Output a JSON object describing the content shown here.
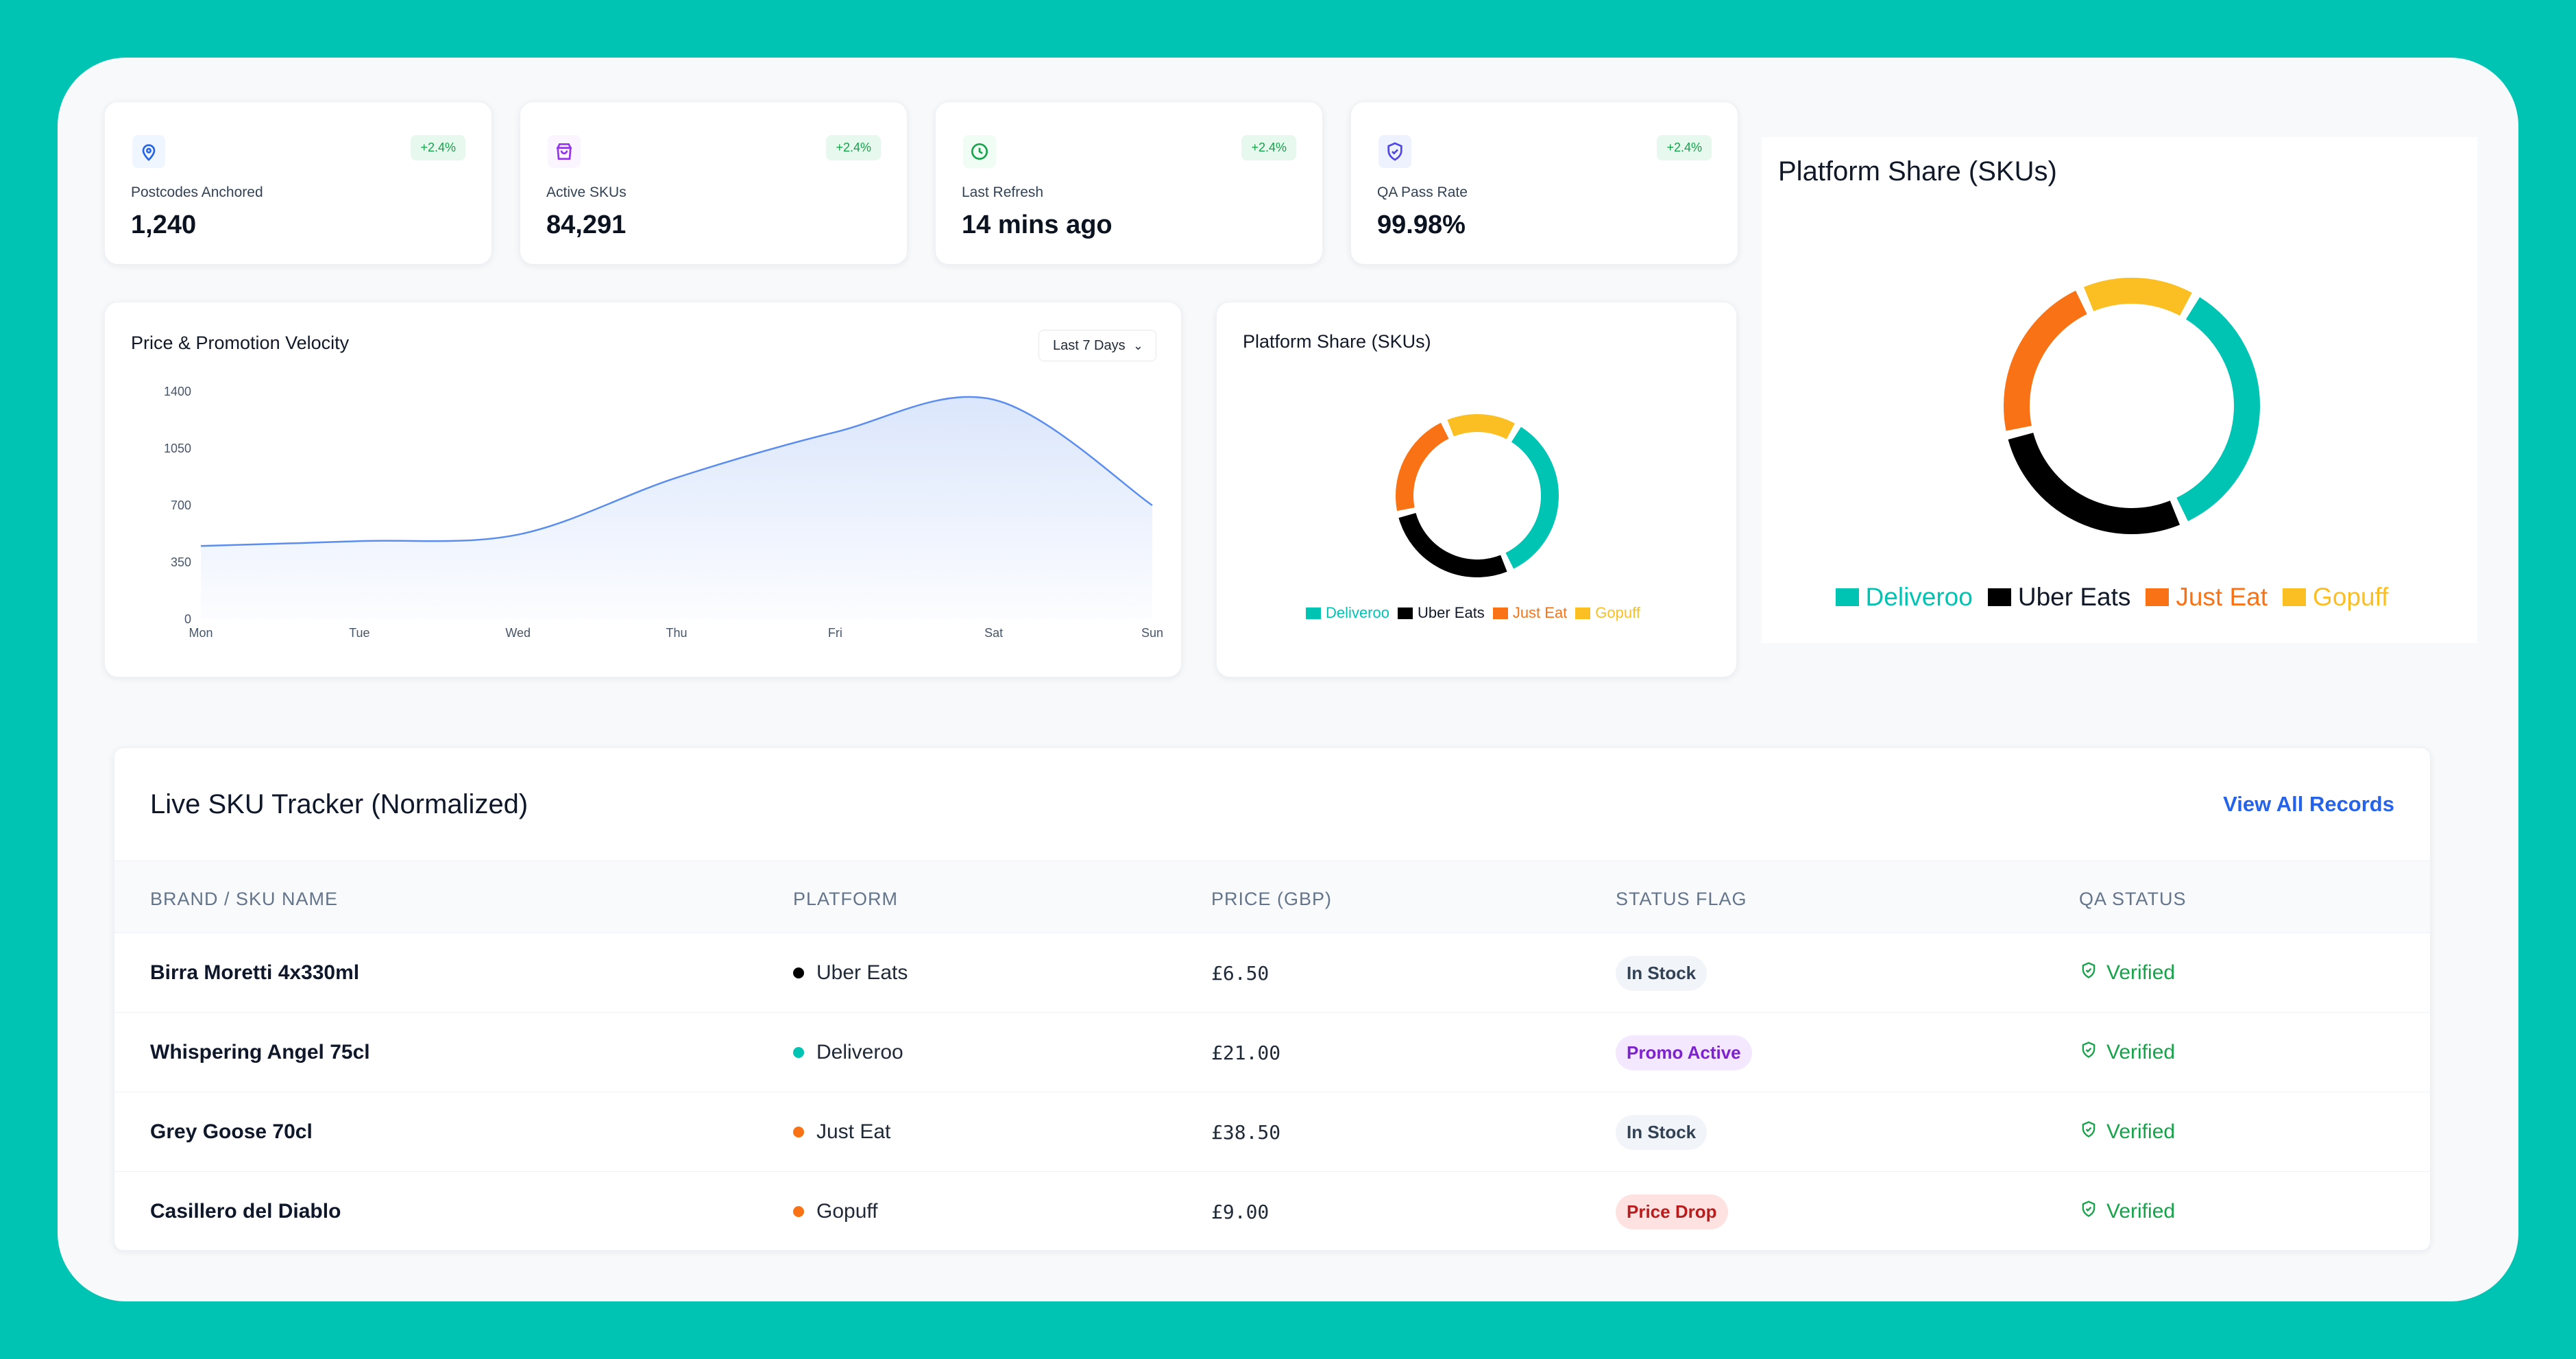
{
  "colors": {
    "background": "#00c4b3",
    "deliveroo": "#00c4b3",
    "uber_eats": "#000000",
    "just_eat": "#f97316",
    "gopuff": "#fbbf24",
    "positive": "#16a34a",
    "link": "#2563eb"
  },
  "stats": [
    {
      "icon": "map-pin-icon",
      "icon_color": "#2563eb",
      "icon_bg": "#eff6ff",
      "label": "Postcodes Anchored",
      "value": "1,240",
      "change": "+2.4%"
    },
    {
      "icon": "shopping-bag-icon",
      "icon_color": "#9333ea",
      "icon_bg": "#faf5ff",
      "label": "Active SKUs",
      "value": "84,291",
      "change": "+2.4%"
    },
    {
      "icon": "clock-icon",
      "icon_color": "#16a34a",
      "icon_bg": "#f0fdf4",
      "label": "Last Refresh",
      "value": "14 mins ago",
      "change": "+2.4%"
    },
    {
      "icon": "shield-check-icon",
      "icon_color": "#4f46e5",
      "icon_bg": "#eef2ff",
      "label": "QA Pass Rate",
      "value": "99.98%",
      "change": "+2.4%"
    }
  ],
  "velocity": {
    "title": "Price & Promotion Velocity",
    "range_label": "Last 7 Days"
  },
  "chart_data": [
    {
      "type": "area",
      "title": "Price & Promotion Velocity",
      "x": [
        "Mon",
        "Tue",
        "Wed",
        "Thu",
        "Fri",
        "Sat",
        "Sun"
      ],
      "series": [
        {
          "values": [
            450,
            480,
            520,
            870,
            1150,
            1350,
            700
          ]
        }
      ],
      "y_ticks": [
        0,
        350,
        700,
        1050,
        1400
      ],
      "ylim": [
        0,
        1400
      ],
      "color": "#5b8def",
      "grid": false
    },
    {
      "type": "pie",
      "donut": true,
      "title": "Platform Share (SKUs)",
      "categories": [
        "Deliveroo",
        "Uber Eats",
        "Just Eat",
        "Gopuff"
      ],
      "values": [
        35,
        28,
        22,
        15
      ],
      "colors": [
        "#00c4b3",
        "#000000",
        "#f97316",
        "#fbbf24"
      ],
      "legend": "bottom"
    },
    {
      "type": "pie",
      "donut": true,
      "title": "Platform Share (SKUs)",
      "categories": [
        "Deliveroo",
        "Uber Eats",
        "Just Eat",
        "Gopuff"
      ],
      "values": [
        35,
        28,
        22,
        15
      ],
      "colors": [
        "#00c4b3",
        "#000000",
        "#f97316",
        "#fbbf24"
      ],
      "legend": "bottom"
    }
  ],
  "share_small": {
    "title": "Platform Share (SKUs)"
  },
  "share_big": {
    "title": "Platform Share (SKUs)"
  },
  "table": {
    "title": "Live SKU Tracker (Normalized)",
    "view_all": "View All Records",
    "headers": [
      "BRAND / SKU NAME",
      "PLATFORM",
      "PRICE (GBP)",
      "STATUS FLAG",
      "QA STATUS"
    ],
    "rows": [
      {
        "name": "Birra Moretti 4x330ml",
        "platform": "Uber Eats",
        "dot": "#000000",
        "price": "£6.50",
        "status": "In Stock",
        "status_bg": "#f1f5f9",
        "status_fg": "#334155",
        "qa": "Verified"
      },
      {
        "name": "Whispering Angel 75cl",
        "platform": "Deliveroo",
        "dot": "#00c4b3",
        "price": "£21.00",
        "status": "Promo Active",
        "status_bg": "#f3e8ff",
        "status_fg": "#7e22ce",
        "qa": "Verified"
      },
      {
        "name": "Grey Goose 70cl",
        "platform": "Just Eat",
        "dot": "#f97316",
        "price": "£38.50",
        "status": "In Stock",
        "status_bg": "#f1f5f9",
        "status_fg": "#334155",
        "qa": "Verified"
      },
      {
        "name": "Casillero del Diablo",
        "platform": "Gopuff",
        "dot": "#f97316",
        "price": "£9.00",
        "status": "Price Drop",
        "status_bg": "#fee2e2",
        "status_fg": "#b91c1c",
        "qa": "Verified"
      }
    ]
  }
}
